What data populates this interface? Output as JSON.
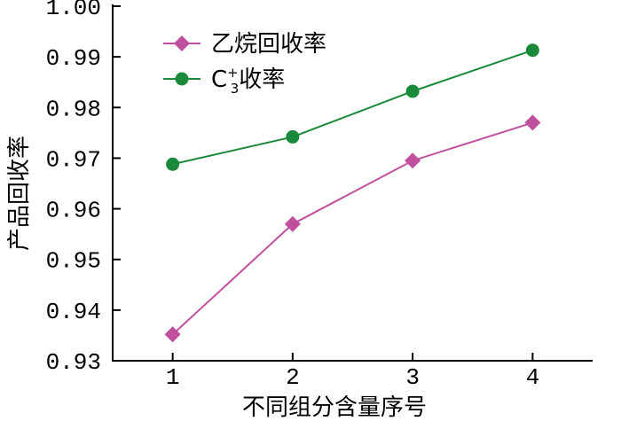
{
  "chart_data": {
    "type": "line",
    "xlabel": "不同组分含量序号",
    "ylabel": "产品回收率",
    "x": [
      1,
      2,
      3,
      4
    ],
    "x_tick_labels": [
      "1",
      "2",
      "3",
      "4"
    ],
    "xlim": [
      0.5,
      4.5
    ],
    "ylim": [
      0.93,
      1.0
    ],
    "y_ticks": [
      0.93,
      0.94,
      0.95,
      0.96,
      0.97,
      0.98,
      0.99,
      1.0
    ],
    "y_tick_labels": [
      "0.93",
      "0.94",
      "0.95",
      "0.96",
      "0.97",
      "0.98",
      "0.99",
      "1.00"
    ],
    "grid": false,
    "legend_position": "top-left",
    "series": [
      {
        "name": "乙烷回收率",
        "marker": "diamond",
        "color": "#c0509d",
        "values": [
          0.9352,
          0.957,
          0.9695,
          0.977
        ]
      },
      {
        "name": "C3+收率",
        "legend_main": "C",
        "legend_sup": "+",
        "legend_sub": "3",
        "legend_tail": "收率",
        "marker": "circle",
        "color": "#1a8a3a",
        "values": [
          0.9688,
          0.9742,
          0.9832,
          0.9913
        ]
      }
    ]
  }
}
